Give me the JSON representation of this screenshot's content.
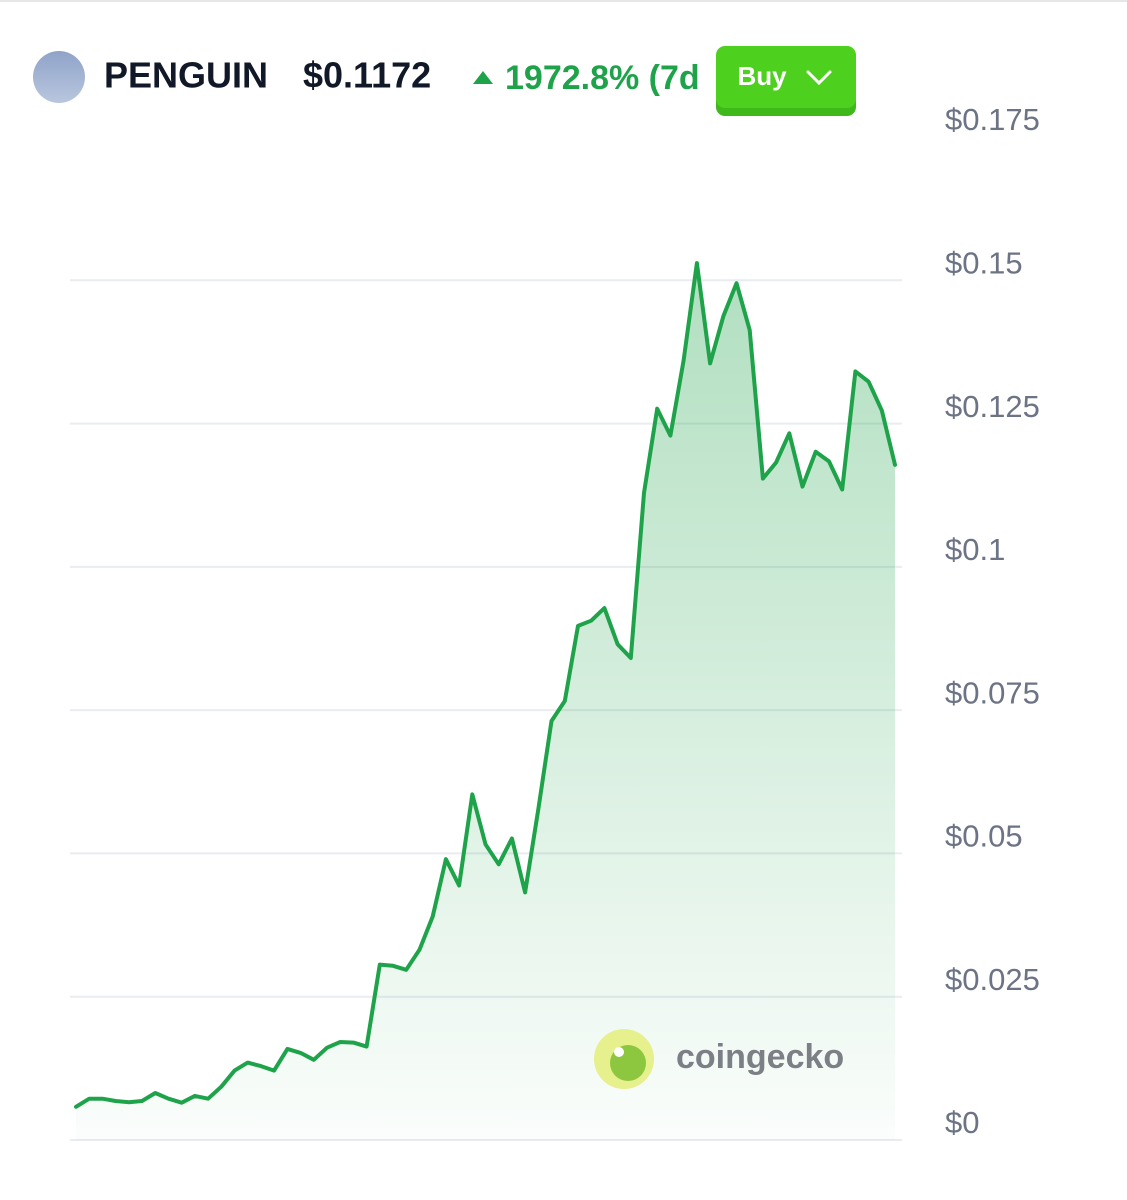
{
  "chart_data": {
    "type": "line",
    "title": "PENGUIN",
    "price": "$0.1172",
    "change": "1972.8% (7d",
    "button": "Buy",
    "watermark": "coingecko",
    "color": "#1fa34a",
    "grid": true,
    "ylim": [
      0,
      0.175
    ],
    "yticks": [
      {
        "value": 0,
        "label": "$0"
      },
      {
        "value": 0.025,
        "label": "$0.025"
      },
      {
        "value": 0.05,
        "label": "$0.05"
      },
      {
        "value": 0.075,
        "label": "$0.075"
      },
      {
        "value": 0.1,
        "label": "$0.1"
      },
      {
        "value": 0.125,
        "label": "$0.125"
      },
      {
        "value": 0.15,
        "label": "$0.15"
      },
      {
        "value": 0.175,
        "label": "$0.175"
      }
    ],
    "values": [
      0.0058,
      0.0072,
      0.0072,
      0.0068,
      0.0066,
      0.0068,
      0.0082,
      0.0072,
      0.0065,
      0.0077,
      0.0072,
      0.0093,
      0.0121,
      0.0135,
      0.0129,
      0.0121,
      0.0159,
      0.0152,
      0.014,
      0.0161,
      0.0171,
      0.017,
      0.0163,
      0.0306,
      0.0304,
      0.0297,
      0.0332,
      0.039,
      0.049,
      0.0444,
      0.0603,
      0.0516,
      0.0481,
      0.0526,
      0.0432,
      0.0577,
      0.0731,
      0.0766,
      0.0897,
      0.0906,
      0.0928,
      0.0865,
      0.0841,
      0.1129,
      0.1276,
      0.1229,
      0.136,
      0.153,
      0.1355,
      0.1437,
      0.1495,
      0.1413,
      0.1154,
      0.1182,
      0.1233,
      0.114,
      0.1201,
      0.1184,
      0.1135,
      0.1341,
      0.1323,
      0.1273,
      0.1178
    ]
  }
}
